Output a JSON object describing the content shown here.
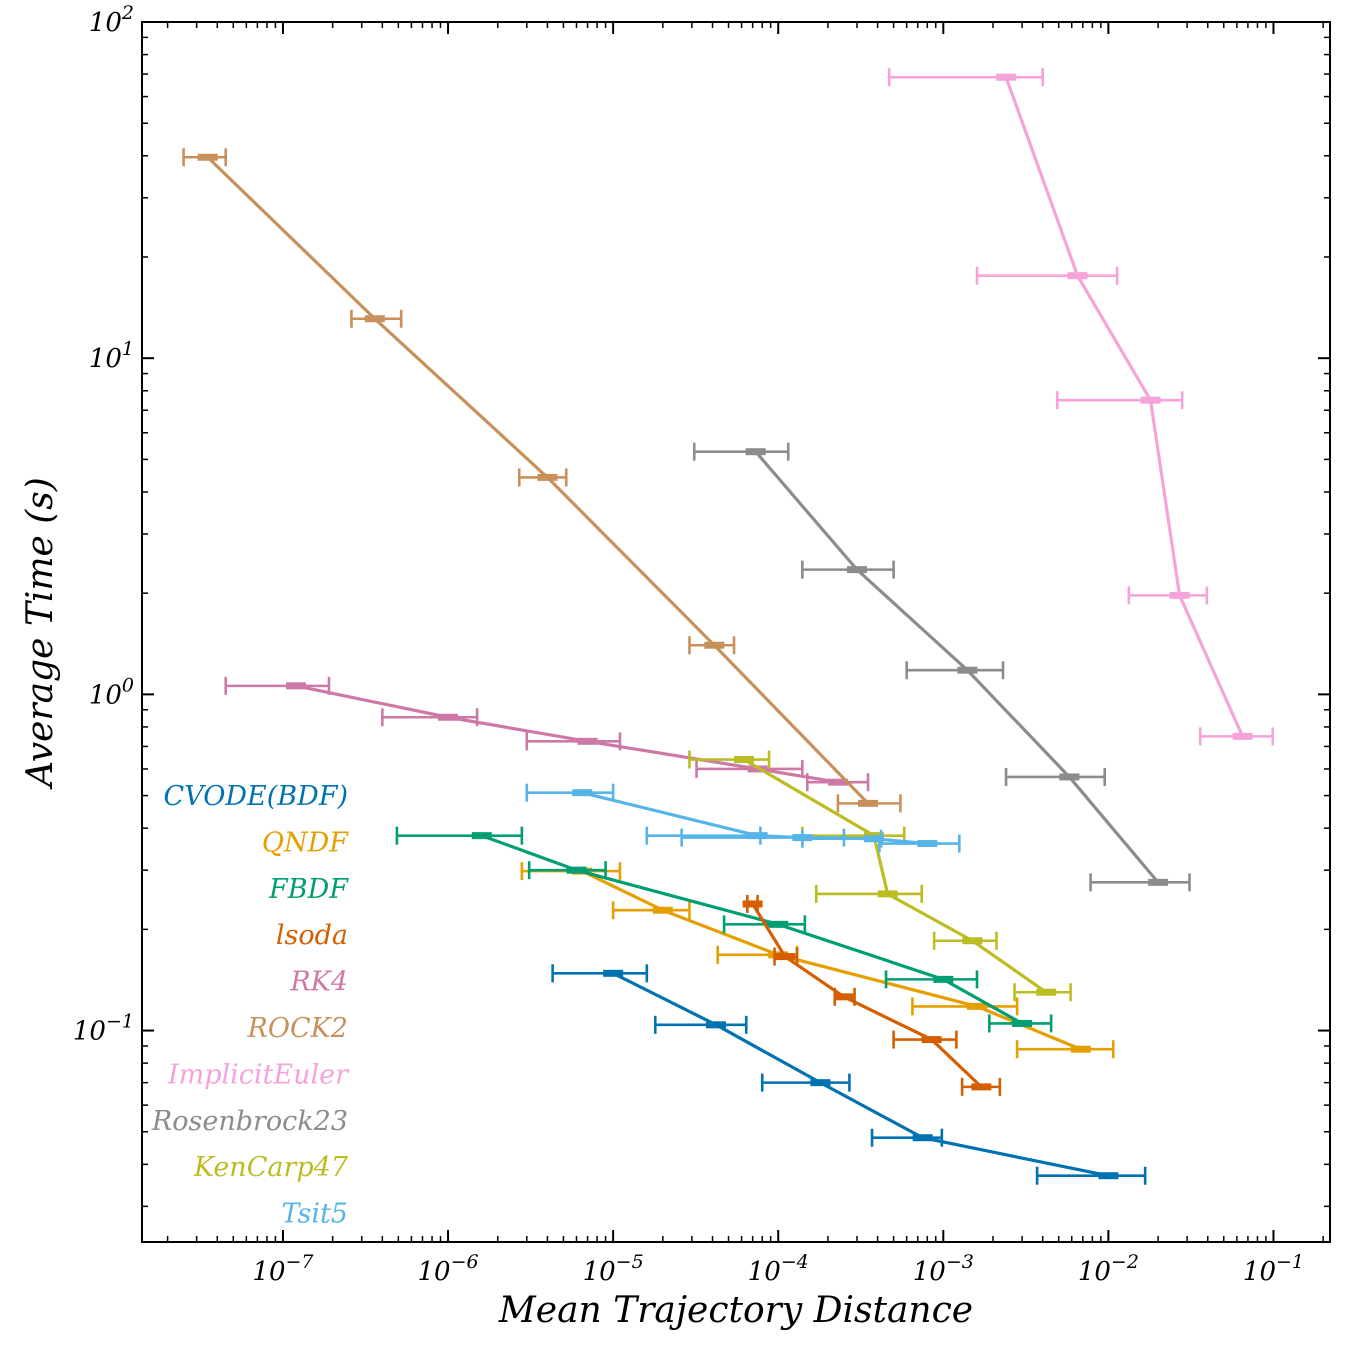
{
  "chart_data": {
    "type": "line",
    "title": "",
    "xlabel": "Mean Trajectory Distance",
    "ylabel": "Average Time (s)",
    "xscale": "log",
    "yscale": "log",
    "xlim": [
      1.4e-08,
      0.22
    ],
    "ylim": [
      0.0235,
      100
    ],
    "x_ticks": [
      {
        "value": 1e-07,
        "base": "10",
        "exp": "−7"
      },
      {
        "value": 1e-06,
        "base": "10",
        "exp": "−6"
      },
      {
        "value": 1e-05,
        "base": "10",
        "exp": "−5"
      },
      {
        "value": 0.0001,
        "base": "10",
        "exp": "−4"
      },
      {
        "value": 0.001,
        "base": "10",
        "exp": "−3"
      },
      {
        "value": 0.01,
        "base": "10",
        "exp": "−2"
      },
      {
        "value": 0.1,
        "base": "10",
        "exp": "−1"
      }
    ],
    "y_ticks": [
      {
        "value": 100,
        "base": "10",
        "exp": "2"
      },
      {
        "value": 10,
        "base": "10",
        "exp": "1"
      },
      {
        "value": 1,
        "base": "10",
        "exp": "0"
      },
      {
        "value": 0.1,
        "base": "10",
        "exp": "−1"
      }
    ],
    "legend_position": "lower-left",
    "error_bars": "horizontal (x) and small vertical (y)",
    "series": [
      {
        "name": "CVODE(BDF)",
        "color": "#0072B2",
        "points": [
          {
            "x": 1e-05,
            "y": 0.148,
            "xlo": 4.3e-06,
            "xhi": 1.6e-05
          },
          {
            "x": 4.2e-05,
            "y": 0.104,
            "xlo": 1.8e-05,
            "xhi": 6.4e-05
          },
          {
            "x": 0.00018,
            "y": 0.07,
            "xlo": 8e-05,
            "xhi": 0.00027
          },
          {
            "x": 0.00075,
            "y": 0.048,
            "xlo": 0.00037,
            "xhi": 0.00098
          },
          {
            "x": 0.01,
            "y": 0.037,
            "xlo": 0.0037,
            "xhi": 0.0167
          }
        ]
      },
      {
        "name": "QNDF",
        "color": "#E69F00",
        "points": [
          {
            "x": 6.5e-06,
            "y": 0.298,
            "xlo": 2.8e-06,
            "xhi": 1.1e-05
          },
          {
            "x": 2e-05,
            "y": 0.228,
            "xlo": 1e-05,
            "xhi": 2.9e-05
          },
          {
            "x": 0.0001,
            "y": 0.168,
            "xlo": 4.3e-05,
            "xhi": 0.00013
          },
          {
            "x": 0.0016,
            "y": 0.118,
            "xlo": 0.00065,
            "xhi": 0.0028
          },
          {
            "x": 0.0068,
            "y": 0.088,
            "xlo": 0.0028,
            "xhi": 0.0107
          }
        ]
      },
      {
        "name": "FBDF",
        "color": "#009E73",
        "points": [
          {
            "x": 1.6e-06,
            "y": 0.38,
            "xlo": 4.9e-07,
            "xhi": 2.8e-06
          },
          {
            "x": 6e-06,
            "y": 0.3,
            "xlo": 3.1e-06,
            "xhi": 9e-06
          },
          {
            "x": 0.0001,
            "y": 0.207,
            "xlo": 4.7e-05,
            "xhi": 0.000145
          },
          {
            "x": 0.001,
            "y": 0.142,
            "xlo": 0.00045,
            "xhi": 0.0016
          },
          {
            "x": 0.003,
            "y": 0.105,
            "xlo": 0.0019,
            "xhi": 0.0045
          }
        ]
      },
      {
        "name": "lsoda",
        "color": "#D55E00",
        "points": [
          {
            "x": 7e-05,
            "y": 0.238,
            "xlo": 6.5e-05,
            "xhi": 7.5e-05
          },
          {
            "x": 0.00011,
            "y": 0.166,
            "xlo": 9.5e-05,
            "xhi": 0.00013
          },
          {
            "x": 0.00025,
            "y": 0.126,
            "xlo": 0.00022,
            "xhi": 0.00029
          },
          {
            "x": 0.00085,
            "y": 0.094,
            "xlo": 0.0005,
            "xhi": 0.0012
          },
          {
            "x": 0.0017,
            "y": 0.068,
            "xlo": 0.0013,
            "xhi": 0.0022
          }
        ]
      },
      {
        "name": "RK4",
        "color": "#CC79A7",
        "points": [
          {
            "x": 1.2e-07,
            "y": 1.06,
            "xlo": 4.5e-08,
            "xhi": 1.9e-07
          },
          {
            "x": 1e-06,
            "y": 0.855,
            "xlo": 4e-07,
            "xhi": 1.5e-06
          },
          {
            "x": 7e-06,
            "y": 0.725,
            "xlo": 3e-06,
            "xhi": 1.1e-05
          },
          {
            "x": 7.5e-05,
            "y": 0.6,
            "xlo": 3.2e-05,
            "xhi": 0.00014
          },
          {
            "x": 0.00023,
            "y": 0.548,
            "xlo": 0.00015,
            "xhi": 0.00035
          }
        ]
      },
      {
        "name": "ROCK2",
        "color": "#C8905A",
        "points": [
          {
            "x": 3.5e-08,
            "y": 39.6,
            "xlo": 2.5e-08,
            "xhi": 4.5e-08
          },
          {
            "x": 3.6e-07,
            "y": 13.1,
            "xlo": 2.6e-07,
            "xhi": 5.2e-07
          },
          {
            "x": 4e-06,
            "y": 4.42,
            "xlo": 2.7e-06,
            "xhi": 5.2e-06
          },
          {
            "x": 4.1e-05,
            "y": 1.4,
            "xlo": 2.9e-05,
            "xhi": 5.4e-05
          },
          {
            "x": 0.00035,
            "y": 0.474,
            "xlo": 0.00023,
            "xhi": 0.00055
          }
        ]
      },
      {
        "name": "ImplicitEuler",
        "color": "#F5A3D9",
        "points": [
          {
            "x": 0.0024,
            "y": 68.5,
            "xlo": 0.00047,
            "xhi": 0.004
          },
          {
            "x": 0.0065,
            "y": 17.6,
            "xlo": 0.0016,
            "xhi": 0.0113
          },
          {
            "x": 0.018,
            "y": 7.5,
            "xlo": 0.0049,
            "xhi": 0.028
          },
          {
            "x": 0.027,
            "y": 1.97,
            "xlo": 0.0133,
            "xhi": 0.0395
          },
          {
            "x": 0.065,
            "y": 0.75,
            "xlo": 0.036,
            "xhi": 0.099
          }
        ]
      },
      {
        "name": "Rosenbrock23",
        "color": "#8C8C8C",
        "points": [
          {
            "x": 7.3e-05,
            "y": 5.27,
            "xlo": 3.1e-05,
            "xhi": 0.000115
          },
          {
            "x": 0.0003,
            "y": 2.35,
            "xlo": 0.00014,
            "xhi": 0.0005
          },
          {
            "x": 0.0014,
            "y": 1.18,
            "xlo": 0.0006,
            "xhi": 0.0023
          },
          {
            "x": 0.0058,
            "y": 0.568,
            "xlo": 0.0024,
            "xhi": 0.0095
          },
          {
            "x": 0.02,
            "y": 0.276,
            "xlo": 0.0078,
            "xhi": 0.031
          }
        ]
      },
      {
        "name": "KenCarp47",
        "color": "#BCBD22",
        "points": [
          {
            "x": 6.2e-05,
            "y": 0.64,
            "xlo": 2.9e-05,
            "xhi": 8.8e-05
          },
          {
            "x": 0.00038,
            "y": 0.38,
            "xlo": 0.00014,
            "xhi": 0.00058
          },
          {
            "x": 0.00046,
            "y": 0.255,
            "xlo": 0.00017,
            "xhi": 0.00074
          },
          {
            "x": 0.0015,
            "y": 0.185,
            "xlo": 0.00088,
            "xhi": 0.0021
          },
          {
            "x": 0.0042,
            "y": 0.13,
            "xlo": 0.0027,
            "xhi": 0.0059
          }
        ]
      },
      {
        "name": "Tsit5",
        "color": "#56B4E9",
        "points": [
          {
            "x": 6.5e-06,
            "y": 0.51,
            "xlo": 3e-06,
            "xhi": 1e-05
          },
          {
            "x": 7.5e-05,
            "y": 0.38,
            "xlo": 1.6e-05,
            "xhi": 7.8e-05
          },
          {
            "x": 0.00014,
            "y": 0.375,
            "xlo": 2.6e-05,
            "xhi": 0.00025
          },
          {
            "x": 0.00038,
            "y": 0.372,
            "xlo": 0.00014,
            "xhi": 0.00042
          },
          {
            "x": 0.0008,
            "y": 0.36,
            "xlo": 0.00041,
            "xhi": 0.00125
          }
        ]
      }
    ]
  }
}
